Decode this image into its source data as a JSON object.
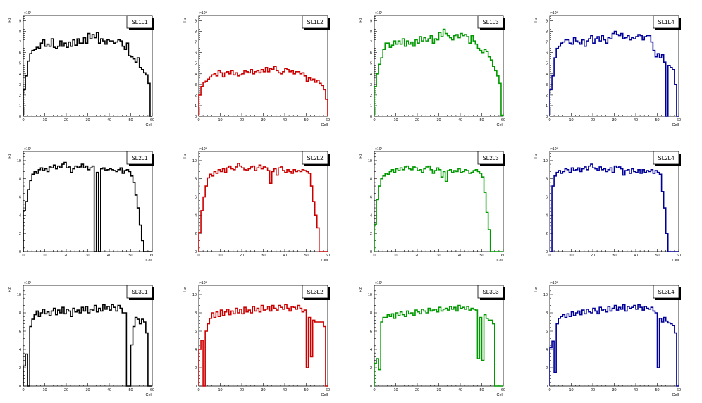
{
  "chart_data": [
    {
      "type": "histogram",
      "title": "SL1L1",
      "xlabel": "Cell",
      "ylabel": "Hz",
      "exponent": "×10³",
      "color": "#000000",
      "xlim": [
        0,
        60
      ],
      "ylim": [
        0,
        9.5
      ],
      "yticks": [
        1,
        2,
        3,
        4,
        5,
        6,
        7,
        8,
        9
      ],
      "xticks": [
        0,
        10,
        20,
        30,
        40,
        50,
        60
      ],
      "values": [
        2.5,
        3.8,
        5.2,
        5.9,
        6.2,
        6.3,
        6.5,
        6.4,
        6.9,
        7.2,
        6.6,
        6.8,
        6.6,
        7.3,
        6.5,
        6.4,
        6.6,
        7.1,
        6.6,
        6.9,
        6.5,
        7.0,
        6.6,
        7.2,
        6.7,
        7.3,
        6.9,
        6.9,
        7.4,
        6.9,
        7.8,
        7.3,
        7.7,
        7.4,
        7.9,
        6.9,
        7.3,
        7.1,
        6.8,
        7.2,
        7.1,
        7.1,
        6.9,
        7.0,
        7.2,
        7.1,
        6.6,
        6.3,
        6.9,
        5.7,
        5.6,
        5.4,
        5.1,
        5.5,
        4.6,
        4.4,
        4.1,
        3.9,
        3.1,
        0.0
      ]
    },
    {
      "type": "histogram",
      "title": "SL1L2",
      "xlabel": "Cell",
      "ylabel": "Hz",
      "exponent": "×10³",
      "color": "#cc0000",
      "xlim": [
        0,
        60
      ],
      "ylim": [
        0,
        9.5
      ],
      "yticks": [
        1,
        2,
        3,
        4,
        5,
        6,
        7,
        8,
        9
      ],
      "xticks": [
        0,
        10,
        20,
        30,
        40,
        50,
        60
      ],
      "values": [
        2.0,
        2.8,
        3.2,
        3.3,
        3.5,
        3.7,
        3.9,
        4.0,
        3.8,
        4.3,
        4.1,
        3.7,
        4.1,
        4.2,
        4.0,
        4.3,
        3.9,
        4.1,
        3.8,
        3.9,
        4.0,
        4.3,
        4.2,
        4.1,
        4.4,
        4.0,
        4.2,
        4.3,
        4.1,
        4.4,
        4.2,
        4.6,
        4.2,
        4.5,
        4.4,
        4.7,
        4.3,
        4.1,
        4.0,
        4.2,
        4.5,
        4.4,
        4.2,
        4.3,
        4.0,
        4.2,
        4.2,
        4.0,
        4.1,
        3.8,
        3.3,
        3.6,
        3.4,
        3.5,
        3.2,
        3.4,
        3.1,
        2.9,
        2.5,
        1.6
      ]
    },
    {
      "type": "histogram",
      "title": "SL1L3",
      "xlabel": "Cell",
      "ylabel": "Hz",
      "exponent": "×10³",
      "color": "#009900",
      "xlim": [
        0,
        60
      ],
      "ylim": [
        0,
        9.5
      ],
      "yticks": [
        1,
        2,
        3,
        4,
        5,
        6,
        7,
        8,
        9
      ],
      "xticks": [
        0,
        10,
        20,
        30,
        40,
        50,
        60
      ],
      "values": [
        2.8,
        4.0,
        4.9,
        5.5,
        6.3,
        6.9,
        6.9,
        6.5,
        6.7,
        7.1,
        6.8,
        7.1,
        6.8,
        7.3,
        6.6,
        7.1,
        6.8,
        7.0,
        6.6,
        7.2,
        6.9,
        7.5,
        7.1,
        7.4,
        7.1,
        7.3,
        7.6,
        6.9,
        7.3,
        7.2,
        7.9,
        7.5,
        8.2,
        7.8,
        7.6,
        7.4,
        7.2,
        7.6,
        7.7,
        7.4,
        7.8,
        7.6,
        7.7,
        7.5,
        6.9,
        7.6,
        7.1,
        6.8,
        6.4,
        6.2,
        6.0,
        6.3,
        6.1,
        5.6,
        5.3,
        4.7,
        4.3,
        3.8,
        3.1,
        0.1
      ]
    },
    {
      "type": "histogram",
      "title": "SL1L4",
      "xlabel": "Cell",
      "ylabel": "Hz",
      "exponent": "×10³",
      "color": "#000099",
      "xlim": [
        0,
        60
      ],
      "ylim": [
        0,
        9.5
      ],
      "yticks": [
        1,
        2,
        3,
        4,
        5,
        6,
        7,
        8,
        9
      ],
      "xticks": [
        0,
        10,
        20,
        30,
        40,
        50,
        60
      ],
      "values": [
        2.5,
        3.8,
        5.5,
        6.4,
        6.6,
        6.9,
        7.0,
        7.2,
        7.2,
        6.9,
        6.8,
        7.4,
        7.1,
        7.0,
        6.8,
        7.2,
        6.6,
        7.1,
        7.3,
        7.6,
        6.9,
        7.3,
        7.5,
        7.1,
        7.6,
        7.2,
        6.9,
        7.4,
        7.3,
        7.8,
        8.0,
        7.7,
        7.6,
        7.8,
        7.3,
        7.4,
        7.6,
        7.2,
        7.4,
        7.3,
        7.5,
        7.7,
        7.6,
        7.2,
        7.5,
        7.6,
        7.6,
        7.0,
        6.2,
        5.6,
        5.9,
        5.5,
        5.8,
        5.1,
        0.0,
        4.8,
        4.6,
        4.4,
        3.0,
        0.0
      ]
    },
    {
      "type": "histogram",
      "title": "SL2L1",
      "xlabel": "Cell",
      "ylabel": "Hz",
      "exponent": "×10³",
      "color": "#000000",
      "xlim": [
        0,
        60
      ],
      "ylim": [
        0,
        11
      ],
      "yticks": [
        2,
        4,
        6,
        8,
        10
      ],
      "xticks": [
        0,
        10,
        20,
        30,
        40,
        50,
        60
      ],
      "values": [
        4.5,
        5.5,
        6.8,
        7.8,
        8.5,
        8.8,
        8.6,
        9.0,
        9.2,
        8.9,
        9.1,
        8.8,
        9.3,
        9.2,
        9.5,
        9.1,
        9.4,
        9.2,
        9.6,
        9.8,
        9.2,
        9.3,
        8.7,
        9.1,
        9.4,
        9.2,
        9.3,
        9.6,
        9.2,
        9.4,
        9.0,
        9.2,
        9.4,
        0.0,
        8.7,
        0.0,
        9.1,
        9.2,
        8.9,
        9.0,
        9.1,
        9.0,
        8.9,
        8.8,
        9.0,
        9.2,
        8.6,
        8.9,
        9.0,
        8.8,
        8.3,
        7.6,
        6.2,
        4.8,
        2.9,
        1.2,
        0.0,
        0.0,
        0.0,
        0.0
      ]
    },
    {
      "type": "histogram",
      "title": "SL2L2",
      "xlabel": "Cell",
      "ylabel": "Hz",
      "exponent": "×10³",
      "color": "#cc0000",
      "xlim": [
        0,
        60
      ],
      "ylim": [
        0,
        11
      ],
      "yticks": [
        2,
        4,
        6,
        8,
        10
      ],
      "xticks": [
        0,
        10,
        20,
        30,
        40,
        50,
        60
      ],
      "values": [
        2.1,
        4.5,
        6.0,
        7.2,
        8.1,
        8.5,
        8.3,
        8.8,
        8.6,
        9.0,
        8.8,
        9.1,
        8.7,
        9.2,
        9.4,
        9.1,
        9.0,
        9.3,
        9.7,
        9.4,
        9.2,
        9.0,
        8.9,
        9.1,
        9.3,
        9.4,
        8.9,
        9.2,
        9.5,
        9.1,
        9.3,
        9.2,
        8.9,
        7.5,
        8.8,
        9.1,
        8.4,
        9.2,
        9.3,
        8.9,
        8.7,
        9.0,
        8.8,
        8.6,
        9.0,
        8.8,
        8.9,
        8.8,
        9.0,
        8.9,
        8.8,
        8.6,
        7.2,
        5.5,
        4.0,
        2.6,
        0.0,
        0.0,
        0.0,
        0.0
      ]
    },
    {
      "type": "histogram",
      "title": "SL2L3",
      "xlabel": "Cell",
      "ylabel": "Hz",
      "exponent": "×10³",
      "color": "#009900",
      "xlim": [
        0,
        60
      ],
      "ylim": [
        0,
        11
      ],
      "yticks": [
        2,
        4,
        6,
        8,
        10
      ],
      "xticks": [
        0,
        10,
        20,
        30,
        40,
        50,
        60
      ],
      "values": [
        3.0,
        5.7,
        7.2,
        8.0,
        8.3,
        8.6,
        8.5,
        8.8,
        9.0,
        8.7,
        9.1,
        8.9,
        9.2,
        9.0,
        9.3,
        9.4,
        9.1,
        9.0,
        9.3,
        9.2,
        8.9,
        9.0,
        8.7,
        9.1,
        9.3,
        9.4,
        9.0,
        8.6,
        8.9,
        9.2,
        9.0,
        8.2,
        8.8,
        7.7,
        8.9,
        9.0,
        8.7,
        8.9,
        8.8,
        9.1,
        8.7,
        8.8,
        9.0,
        8.9,
        8.6,
        8.7,
        8.9,
        9.0,
        8.8,
        8.6,
        8.2,
        6.5,
        4.3,
        2.4,
        0.0,
        0.0,
        0.0,
        0.0,
        0.0,
        0.0
      ]
    },
    {
      "type": "histogram",
      "title": "SL2L4",
      "xlabel": "Cell",
      "ylabel": "Hz",
      "exponent": "×10³",
      "color": "#000099",
      "xlim": [
        0,
        60
      ],
      "ylim": [
        0,
        11
      ],
      "yticks": [
        2,
        4,
        6,
        8,
        10
      ],
      "xticks": [
        0,
        10,
        20,
        30,
        40,
        50,
        60
      ],
      "values": [
        0.0,
        7.2,
        8.3,
        8.7,
        8.9,
        8.6,
        8.8,
        9.1,
        9.0,
        8.7,
        9.2,
        8.9,
        9.0,
        9.2,
        8.8,
        9.1,
        9.3,
        9.0,
        9.4,
        9.6,
        9.2,
        9.1,
        8.9,
        9.3,
        9.0,
        9.1,
        8.8,
        9.0,
        9.2,
        8.7,
        9.4,
        9.2,
        9.3,
        9.1,
        8.4,
        8.9,
        9.0,
        8.6,
        9.1,
        8.8,
        8.7,
        9.0,
        8.6,
        9.0,
        8.7,
        8.9,
        8.8,
        9.0,
        8.6,
        8.9,
        8.7,
        8.5,
        6.6,
        4.8,
        2.0,
        0.0,
        0.0,
        0.0,
        0.0,
        0.0
      ]
    },
    {
      "type": "histogram",
      "title": "SL3L1",
      "xlabel": "Cell",
      "ylabel": "Hz",
      "exponent": "×10³",
      "color": "#000000",
      "xlim": [
        0,
        60
      ],
      "ylim": [
        0,
        11
      ],
      "yticks": [
        2,
        4,
        6,
        8,
        10
      ],
      "xticks": [
        0,
        10,
        20,
        30,
        40,
        50,
        60
      ],
      "values": [
        2.2,
        3.5,
        0.0,
        6.5,
        7.3,
        7.8,
        8.2,
        7.6,
        8.0,
        8.4,
        7.9,
        8.1,
        7.7,
        8.2,
        8.5,
        7.8,
        8.3,
        8.0,
        8.6,
        7.9,
        8.4,
        8.2,
        7.6,
        8.5,
        8.1,
        8.3,
        8.0,
        8.6,
        8.2,
        8.7,
        8.0,
        8.4,
        8.3,
        8.8,
        8.1,
        8.5,
        8.2,
        8.9,
        8.4,
        8.7,
        8.3,
        8.9,
        8.6,
        8.2,
        8.8,
        8.5,
        8.0,
        8.0,
        0.0,
        0.0,
        4.5,
        6.5,
        7.5,
        7.3,
        6.8,
        7.3,
        7.0,
        5.8,
        0.0,
        0.0
      ]
    },
    {
      "type": "histogram",
      "title": "SL3L2",
      "xlabel": "Cell",
      "ylabel": "Hz",
      "exponent": "×10³",
      "color": "#cc0000",
      "xlim": [
        0,
        60
      ],
      "ylim": [
        0,
        11
      ],
      "yticks": [
        2,
        4,
        6,
        8,
        10
      ],
      "xticks": [
        0,
        10,
        20,
        30,
        40,
        50,
        60
      ],
      "values": [
        4.0,
        5.0,
        0.0,
        6.0,
        6.8,
        7.4,
        8.0,
        7.5,
        8.1,
        7.6,
        8.3,
        7.7,
        8.1,
        8.4,
        7.8,
        8.2,
        7.9,
        8.5,
        8.0,
        8.4,
        7.9,
        8.6,
        8.1,
        8.3,
        8.0,
        8.7,
        8.2,
        8.5,
        8.1,
        8.8,
        8.3,
        8.4,
        8.7,
        8.2,
        8.8,
        8.5,
        8.3,
        8.8,
        8.6,
        8.4,
        8.9,
        8.5,
        8.2,
        8.7,
        8.6,
        8.4,
        8.8,
        8.5,
        8.1,
        8.3,
        2.0,
        7.5,
        3.2,
        7.2,
        7.0,
        7.0,
        7.0,
        7.0,
        6.5,
        0.0
      ]
    },
    {
      "type": "histogram",
      "title": "SL3L3",
      "xlabel": "Cell",
      "ylabel": "Hz",
      "exponent": "×10³",
      "color": "#009900",
      "xlim": [
        0,
        60
      ],
      "ylim": [
        0,
        11
      ],
      "yticks": [
        2,
        4,
        6,
        8,
        10
      ],
      "xticks": [
        0,
        10,
        20,
        30,
        40,
        50,
        60
      ],
      "values": [
        2.5,
        3.0,
        1.8,
        7.0,
        7.5,
        7.5,
        7.8,
        7.6,
        7.9,
        7.4,
        8.0,
        7.7,
        8.1,
        7.8,
        7.6,
        8.2,
        7.9,
        8.0,
        7.7,
        8.3,
        8.1,
        7.9,
        8.4,
        8.2,
        8.0,
        8.5,
        8.2,
        8.3,
        8.4,
        8.1,
        8.6,
        8.2,
        8.4,
        8.5,
        8.3,
        8.7,
        8.4,
        8.6,
        8.2,
        8.8,
        8.5,
        8.6,
        8.4,
        8.7,
        8.3,
        8.5,
        8.4,
        8.3,
        3.0,
        7.5,
        2.8,
        7.8,
        7.4,
        7.2,
        7.2,
        6.8,
        0.0,
        0.0,
        0.0,
        0.0
      ]
    },
    {
      "type": "histogram",
      "title": "SL3L4",
      "xlabel": "Cell",
      "ylabel": "Hz",
      "exponent": "×10³",
      "color": "#000099",
      "xlim": [
        0,
        60
      ],
      "ylim": [
        0,
        11
      ],
      "yticks": [
        2,
        4,
        6,
        8,
        10
      ],
      "xticks": [
        0,
        10,
        20,
        30,
        40,
        50,
        60
      ],
      "values": [
        4.2,
        4.9,
        1.5,
        6.8,
        7.4,
        7.6,
        7.8,
        7.5,
        7.9,
        7.6,
        8.1,
        7.7,
        8.0,
        8.2,
        7.8,
        8.3,
        7.9,
        8.4,
        8.1,
        8.0,
        8.5,
        8.2,
        7.9,
        8.6,
        8.3,
        8.4,
        8.1,
        8.7,
        8.2,
        8.5,
        8.8,
        8.3,
        8.6,
        8.4,
        8.9,
        8.2,
        8.7,
        8.5,
        8.6,
        8.8,
        8.4,
        8.9,
        8.6,
        8.3,
        8.7,
        8.5,
        8.4,
        8.6,
        8.2,
        8.0,
        2.0,
        7.4,
        7.0,
        7.5,
        7.1,
        6.9,
        6.8,
        6.6,
        5.8,
        0.0
      ]
    }
  ]
}
